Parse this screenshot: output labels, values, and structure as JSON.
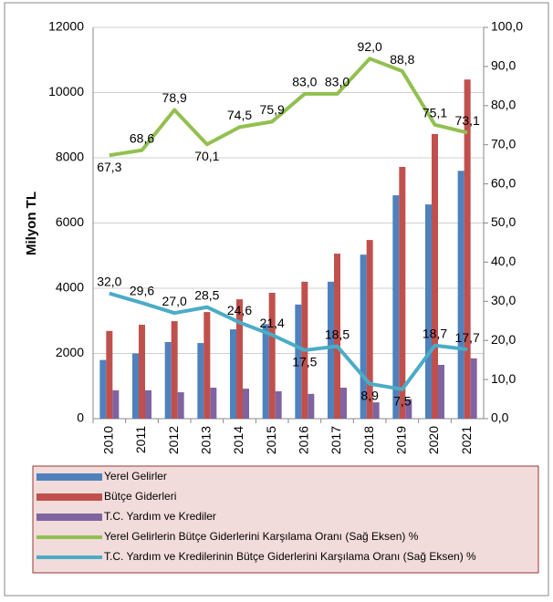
{
  "chart_data": {
    "type": "bar",
    "categories": [
      "2010",
      "2011",
      "2012",
      "2013",
      "2014",
      "2015",
      "2016",
      "2017",
      "2018",
      "2019",
      "2020",
      "2021"
    ],
    "ylabel": "Milyon TL",
    "ylim": [
      0,
      12000
    ],
    "yticks": [
      0,
      2000,
      4000,
      6000,
      8000,
      10000,
      12000
    ],
    "y2lim": [
      0,
      100
    ],
    "y2ticks": [
      {
        "value": 0,
        "label": "0,0"
      },
      {
        "value": 10,
        "label": "10,0"
      },
      {
        "value": 20,
        "label": "20,0"
      },
      {
        "value": 30,
        "label": "30,0"
      },
      {
        "value": 40,
        "label": "40,0"
      },
      {
        "value": 50,
        "label": "50,0"
      },
      {
        "value": 60,
        "label": "60,0"
      },
      {
        "value": 70,
        "label": "70,0"
      },
      {
        "value": 80,
        "label": "80,0"
      },
      {
        "value": 90,
        "label": "90,0"
      },
      {
        "value": 100,
        "label": "100,0"
      }
    ],
    "grid": true,
    "legend": "bottom",
    "series": [
      {
        "name": "Yerel Gelirler",
        "type": "bar",
        "color": "#4f81bd",
        "values": [
          1800,
          2000,
          2350,
          2320,
          2740,
          2900,
          3500,
          4200,
          5030,
          6850,
          6570,
          7600
        ]
      },
      {
        "name": "Bütçe Giderleri",
        "type": "bar",
        "color": "#c0504d",
        "values": [
          2690,
          2880,
          2990,
          3270,
          3660,
          3860,
          4200,
          5060,
          5480,
          7720,
          8730,
          10400
        ]
      },
      {
        "name": "T.C. Yardım ve Krediler",
        "type": "bar",
        "color": "#8064a2",
        "values": [
          870,
          870,
          810,
          950,
          920,
          840,
          760,
          950,
          500,
          600,
          1650,
          1850
        ]
      },
      {
        "name": "Yerel Gelirlerin Bütçe Giderlerini Karşılama Oranı (Sağ Eksen) %",
        "type": "line",
        "axis": "y2",
        "color": "#92c050",
        "values": [
          67.3,
          68.6,
          78.9,
          70.1,
          74.5,
          75.9,
          83.0,
          83.0,
          92.0,
          88.8,
          75.1,
          73.1
        ],
        "value_labels": [
          "67,3",
          "68,6",
          "78,9",
          "70,1",
          "74,5",
          "75,9",
          "83,0",
          "83,0",
          "92,0",
          "88,8",
          "75,1",
          "73,1"
        ]
      },
      {
        "name": "T.C. Yardım ve Kredilerinin Bütçe Giderlerini Karşılama Oranı (Sağ Eksen) %",
        "type": "line",
        "axis": "y2",
        "color": "#4bacc6",
        "values": [
          32.0,
          29.6,
          27.0,
          28.5,
          24.6,
          21.4,
          17.5,
          18.5,
          8.9,
          7.5,
          18.7,
          17.7
        ],
        "value_labels": [
          "32,0",
          "29,6",
          "27,0",
          "28,5",
          "24,6",
          "21,4",
          "17,5",
          "18,5",
          "8,9",
          "7,5",
          "18,7",
          "17,7"
        ]
      }
    ]
  }
}
